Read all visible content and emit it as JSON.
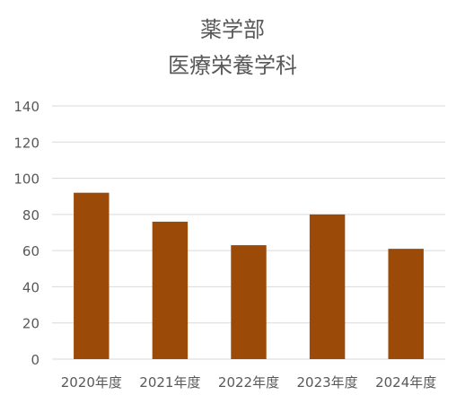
{
  "chart_data": {
    "type": "bar",
    "title_lines": [
      "薬学部",
      "医療栄養学科"
    ],
    "categories": [
      "2020年度",
      "2021年度",
      "2022年度",
      "2023年度",
      "2024年度"
    ],
    "values": [
      92,
      76,
      63,
      80,
      61
    ],
    "ylim": [
      0,
      140
    ],
    "yticks": [
      0,
      20,
      40,
      60,
      80,
      100,
      120,
      140
    ],
    "grid": true,
    "legend": "none",
    "bar_color": "#9C4A08",
    "grid_color": "#D9D9D9",
    "text_color": "#595959"
  }
}
